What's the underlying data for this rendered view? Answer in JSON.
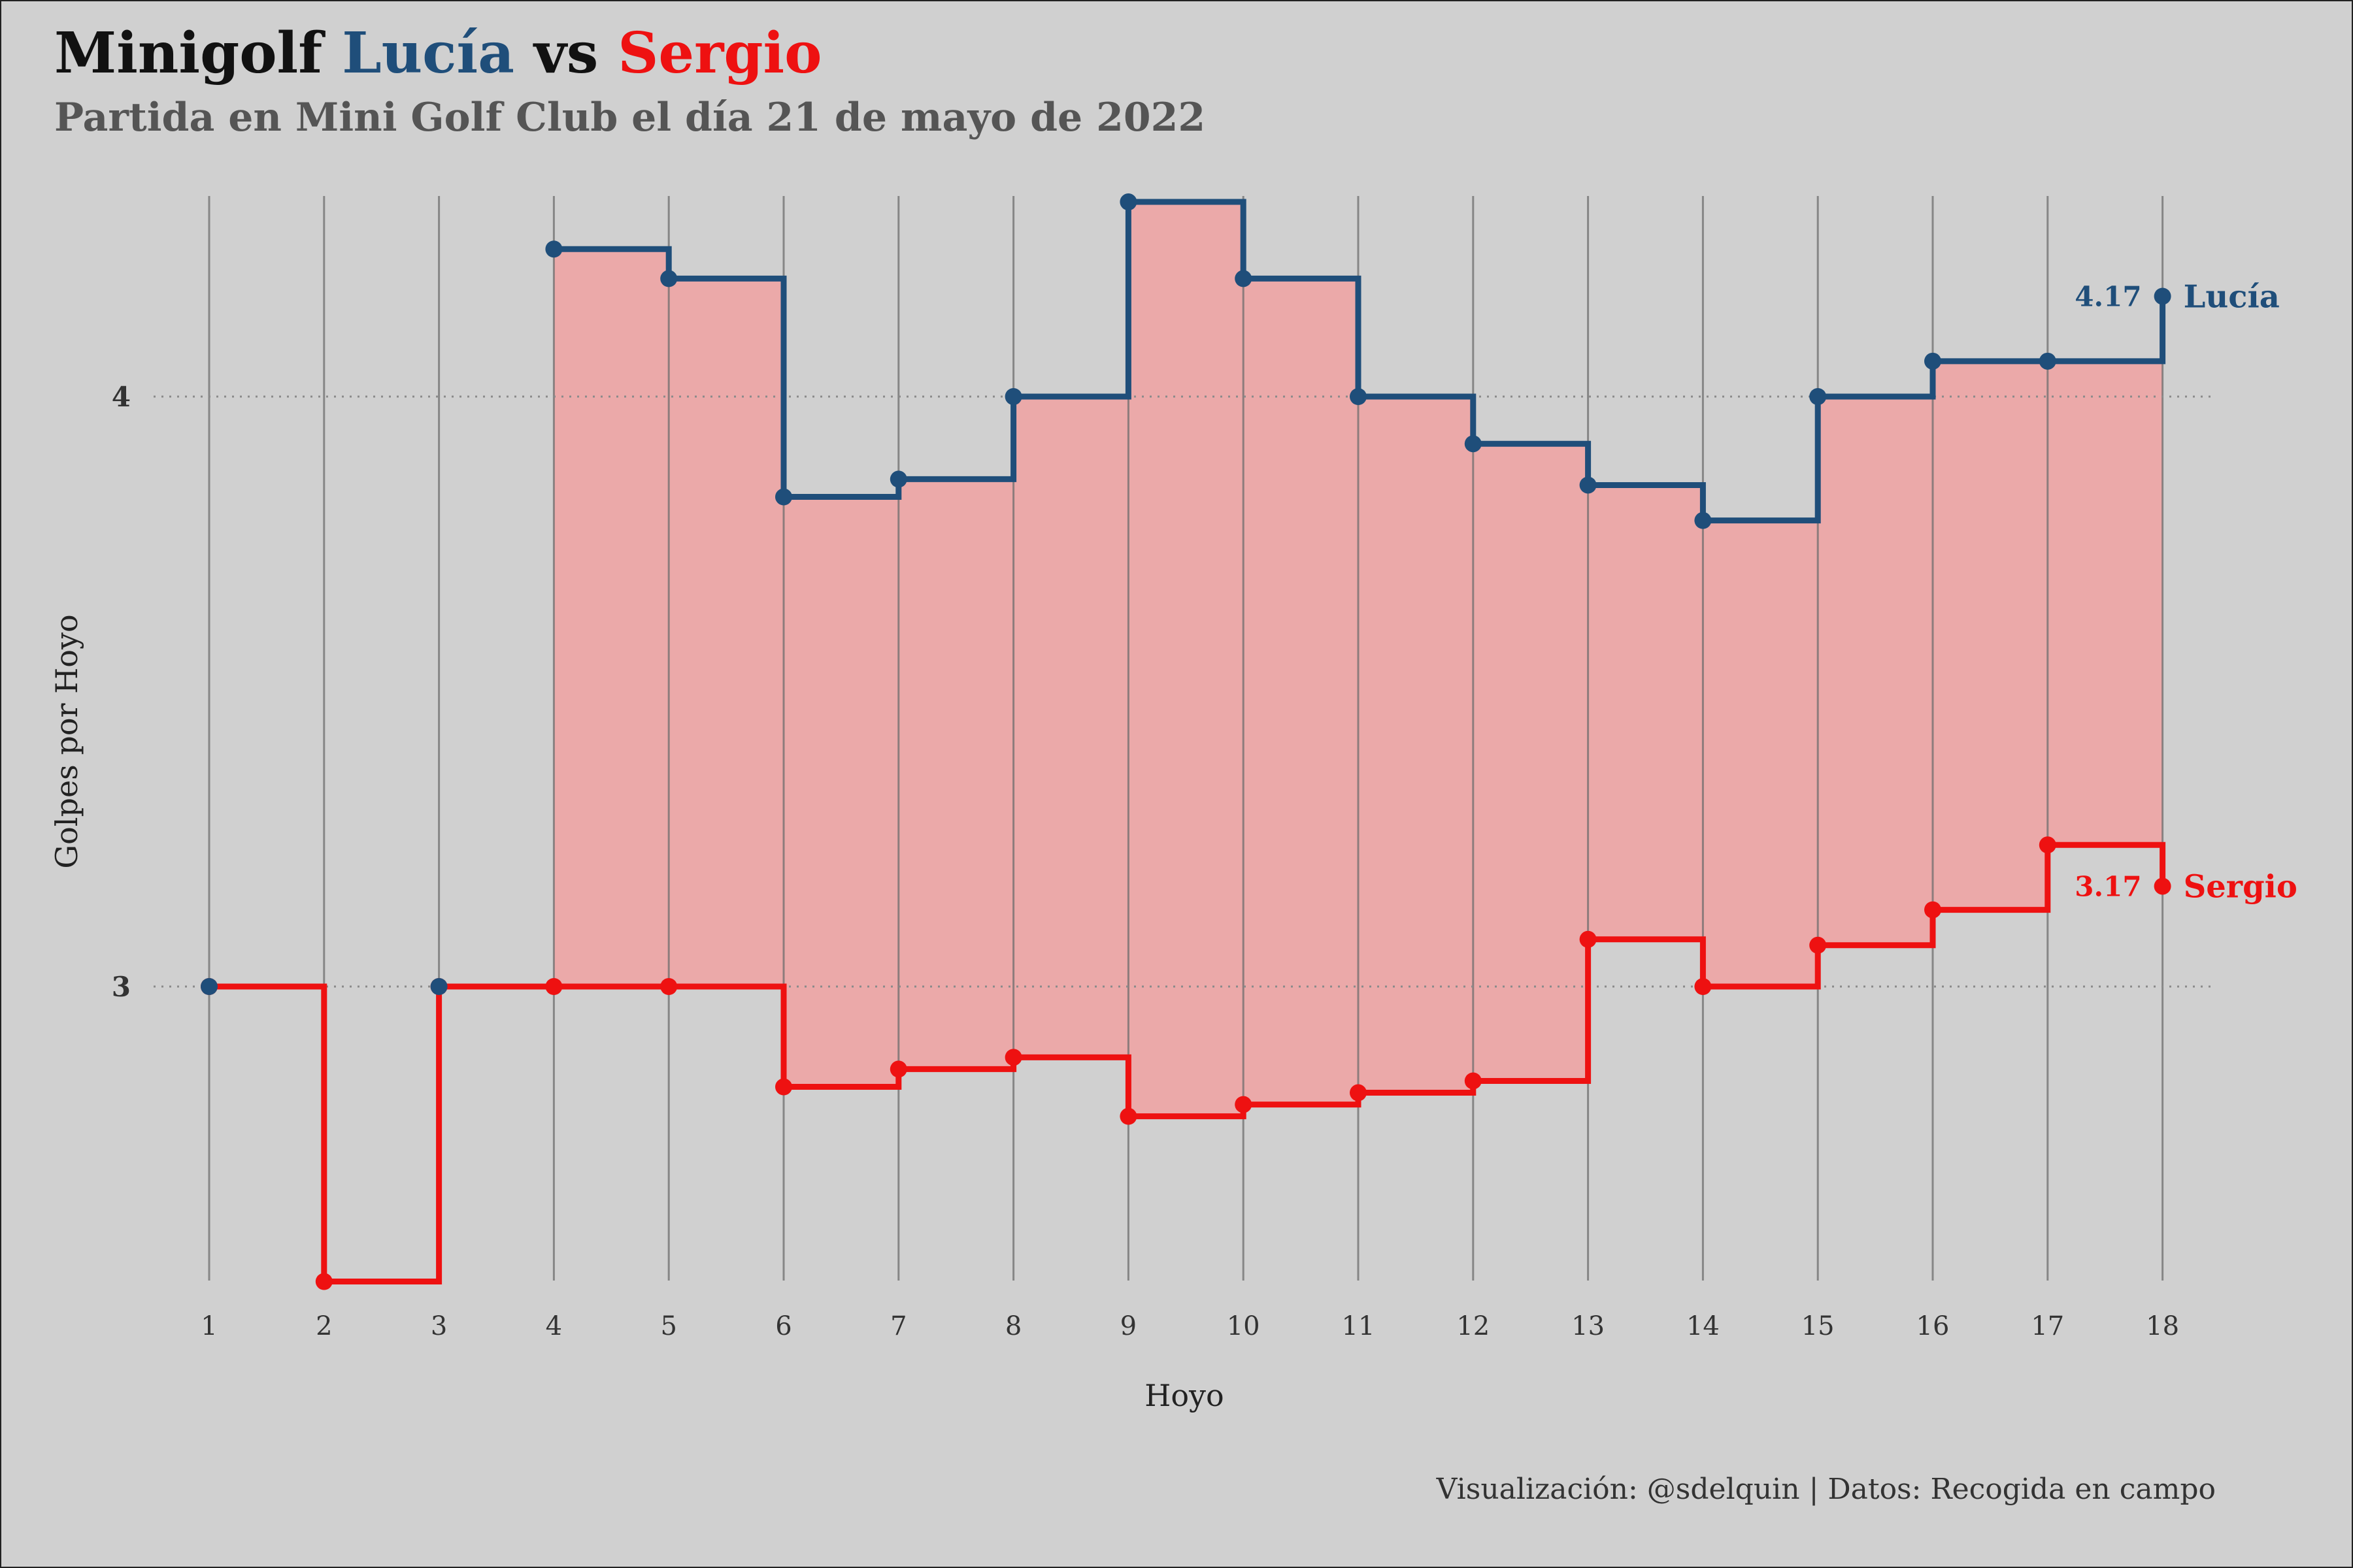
{
  "title": {
    "prefix": "Minigolf",
    "player1": "Lucía",
    "joiner": "vs",
    "player2": "Sergio"
  },
  "subtitle": "Partida en Mini Golf Club el día 21 de mayo de 2022",
  "caption": "Visualización: @sdelquin | Datos: Recogida en campo",
  "colors": {
    "lucia": "#1f4e7a",
    "sergio": "#ee1111",
    "fill": "#eba9a9",
    "background": "#d0d0d0"
  },
  "chart_data": {
    "type": "line",
    "step": "post",
    "xlabel": "Hoyo",
    "ylabel": "Golpes por Hoyo",
    "x": [
      1,
      2,
      3,
      4,
      5,
      6,
      7,
      8,
      9,
      10,
      11,
      12,
      13,
      14,
      15,
      16,
      17,
      18
    ],
    "yticks": [
      3,
      4
    ],
    "ylim": [
      2.5,
      4.33
    ],
    "grid": "vertical lines at each hole, dotted horizontal lines at y ticks",
    "series": [
      {
        "name": "Lucía",
        "color": "#1f4e7a",
        "start_hole": 4,
        "values": [
          null,
          null,
          null,
          4.25,
          4.2,
          3.83,
          3.86,
          4.0,
          4.33,
          4.2,
          4.0,
          3.92,
          3.85,
          3.79,
          4.0,
          4.06,
          4.06,
          4.17
        ],
        "end_label": "4.17"
      },
      {
        "name": "Sergio",
        "color": "#ee1111",
        "values": [
          3.0,
          2.5,
          3.0,
          3.0,
          3.0,
          2.83,
          2.86,
          2.88,
          2.78,
          2.8,
          2.82,
          2.84,
          3.08,
          3.0,
          3.07,
          3.13,
          3.24,
          3.17
        ],
        "end_label": "3.17"
      }
    ]
  }
}
